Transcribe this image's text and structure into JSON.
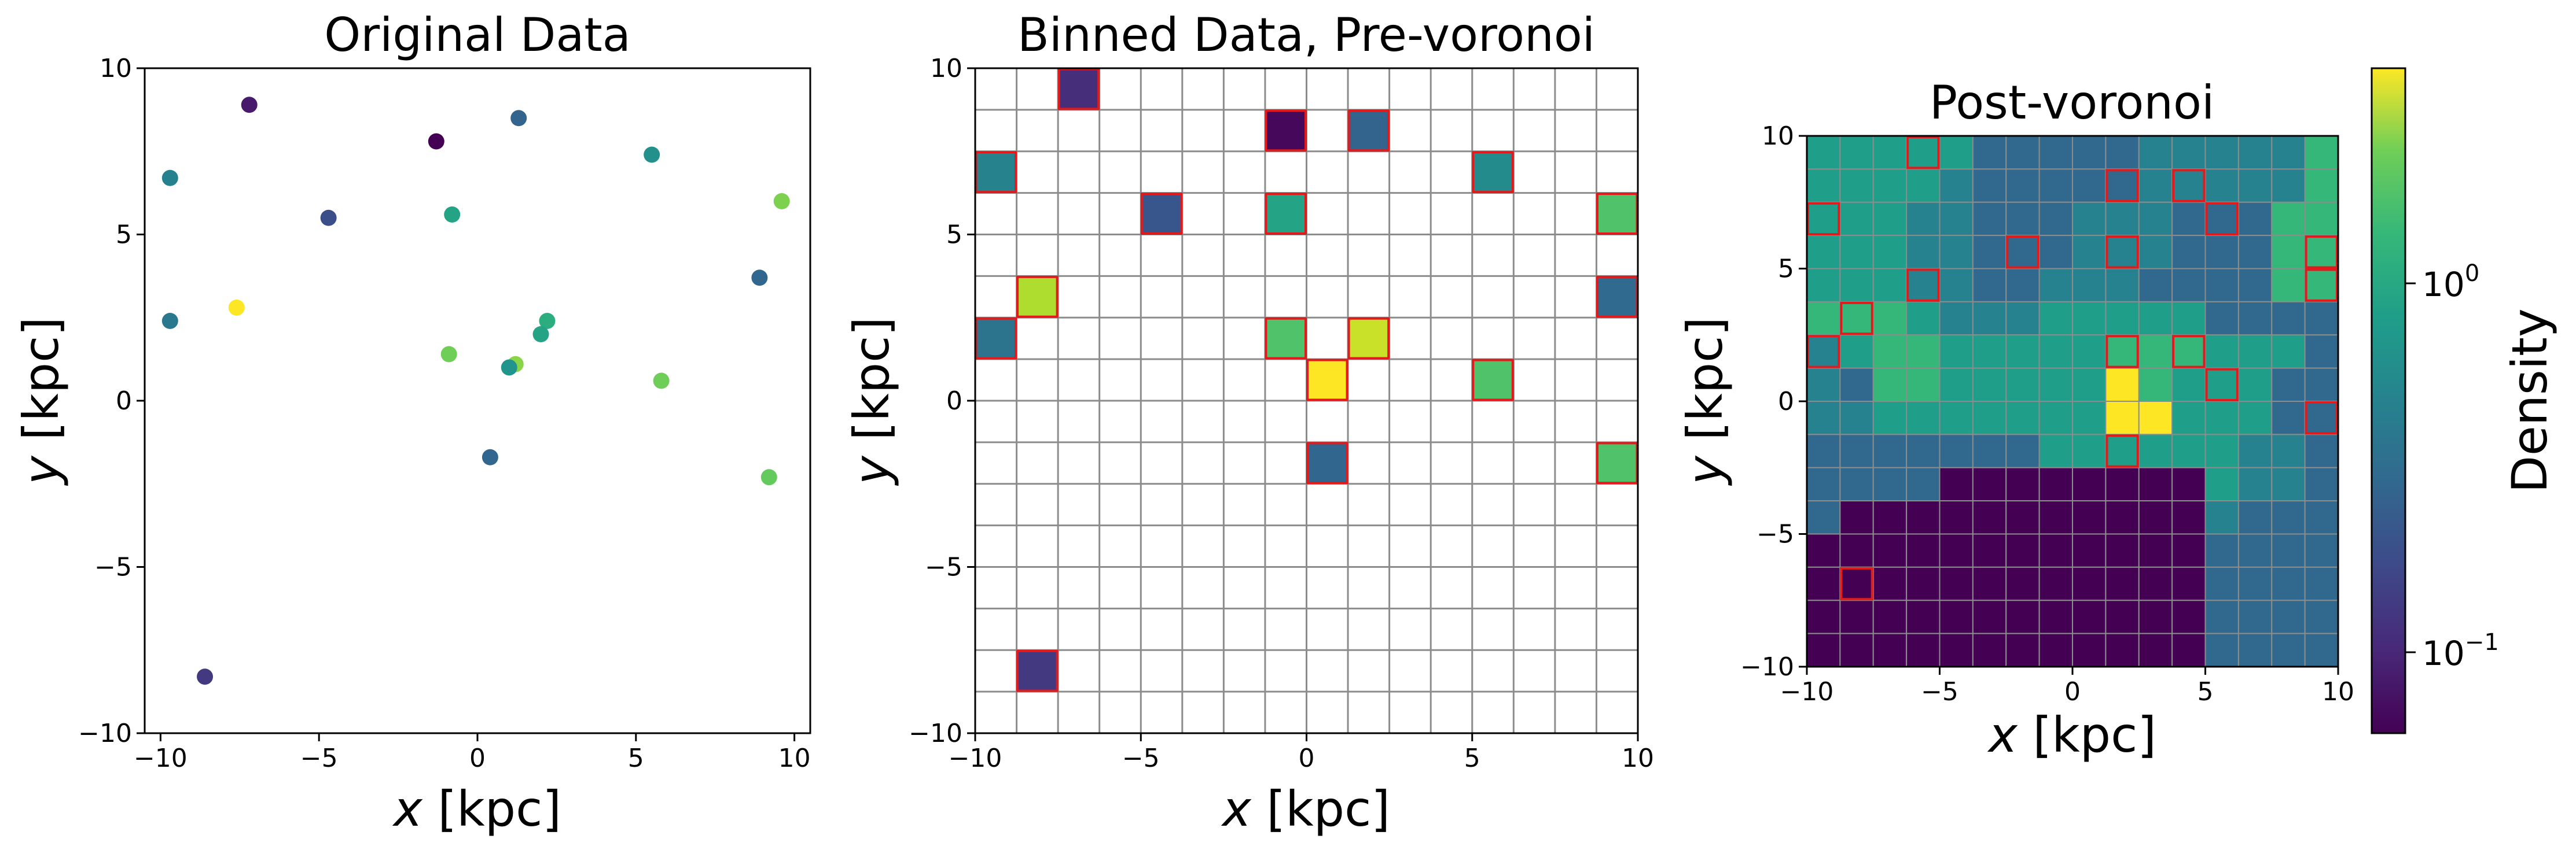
{
  "figure": {
    "panels": [
      {
        "title": "Original Data",
        "xlabel": "x [kpc]",
        "ylabel": "y [kpc]"
      },
      {
        "title": "Binned Data, Pre-voronoi",
        "xlabel": "x [kpc]",
        "ylabel": "y [kpc]"
      },
      {
        "title": "Post-voronoi",
        "xlabel": "x [kpc]",
        "ylabel": "y [kpc]"
      }
    ],
    "colorbar": {
      "label": "Density",
      "ticks": [
        "10^0",
        "10^-1"
      ],
      "scale": "log"
    },
    "colors": {
      "highlight": "#e31a1c",
      "grid": "#8c8c8c"
    }
  },
  "chart_data": [
    {
      "type": "scatter",
      "title": "Original Data",
      "xlabel": "x [kpc]",
      "ylabel": "y [kpc]",
      "xlim": [
        -10.5,
        10.5
      ],
      "ylim": [
        -10,
        10
      ],
      "xticks": [
        -10,
        -5,
        0,
        5,
        10
      ],
      "yticks": [
        -10,
        -5,
        0,
        5,
        10
      ],
      "points": [
        {
          "x": -7.2,
          "y": 8.9,
          "c": 0.07
        },
        {
          "x": -1.3,
          "y": 7.8,
          "c": 0.0
        },
        {
          "x": 1.3,
          "y": 8.5,
          "c": 0.32
        },
        {
          "x": 5.5,
          "y": 7.4,
          "c": 0.5
        },
        {
          "x": -9.7,
          "y": 6.7,
          "c": 0.44
        },
        {
          "x": -4.7,
          "y": 5.5,
          "c": 0.24
        },
        {
          "x": -0.8,
          "y": 5.6,
          "c": 0.58
        },
        {
          "x": 9.6,
          "y": 6.0,
          "c": 0.8
        },
        {
          "x": -9.7,
          "y": 2.4,
          "c": 0.4
        },
        {
          "x": -7.6,
          "y": 2.8,
          "c": 1.0
        },
        {
          "x": 8.9,
          "y": 3.7,
          "c": 0.33
        },
        {
          "x": 2.2,
          "y": 2.4,
          "c": 0.62
        },
        {
          "x": 2.0,
          "y": 2.0,
          "c": 0.58
        },
        {
          "x": -0.9,
          "y": 1.4,
          "c": 0.78
        },
        {
          "x": 1.2,
          "y": 1.1,
          "c": 0.82
        },
        {
          "x": 1.0,
          "y": 1.0,
          "c": 0.52
        },
        {
          "x": 5.8,
          "y": 0.6,
          "c": 0.78
        },
        {
          "x": 0.4,
          "y": -1.7,
          "c": 0.33
        },
        {
          "x": 9.2,
          "y": -2.3,
          "c": 0.76
        },
        {
          "x": -8.6,
          "y": -8.3,
          "c": 0.17
        }
      ]
    },
    {
      "type": "heatmap",
      "title": "Binned Data, Pre-voronoi",
      "xlabel": "x [kpc]",
      "ylabel": "y [kpc]",
      "xlim": [
        -10,
        10
      ],
      "ylim": [
        -10,
        10
      ],
      "grid": true,
      "cells": [
        {
          "x": -7.5,
          "y": 9.38,
          "c": 0.13
        },
        {
          "x": -1.25,
          "y": 8.13,
          "c": 0.02
        },
        {
          "x": 1.88,
          "y": 8.13,
          "c": 0.32
        },
        {
          "x": -9.38,
          "y": 6.88,
          "c": 0.45
        },
        {
          "x": 5.63,
          "y": 6.88,
          "c": 0.48
        },
        {
          "x": -4.38,
          "y": 5.63,
          "c": 0.27
        },
        {
          "x": -0.63,
          "y": 5.63,
          "c": 0.58
        },
        {
          "x": 9.38,
          "y": 5.63,
          "c": 0.72
        },
        {
          "x": -8.13,
          "y": 3.13,
          "c": 0.88
        },
        {
          "x": 9.38,
          "y": 3.13,
          "c": 0.34
        },
        {
          "x": -9.38,
          "y": 1.88,
          "c": 0.38
        },
        {
          "x": -0.63,
          "y": 1.88,
          "c": 0.72
        },
        {
          "x": 1.88,
          "y": 1.88,
          "c": 0.92
        },
        {
          "x": 0.63,
          "y": 0.63,
          "c": 1.0
        },
        {
          "x": 5.63,
          "y": 0.63,
          "c": 0.72
        },
        {
          "x": 0.63,
          "y": -1.88,
          "c": 0.33
        },
        {
          "x": 9.38,
          "y": -1.88,
          "c": 0.72
        },
        {
          "x": -8.13,
          "y": -8.13,
          "c": 0.17
        }
      ]
    },
    {
      "type": "heatmap",
      "title": "Post-voronoi",
      "xlabel": "x [kpc]",
      "ylabel": "y [kpc]",
      "xlim": [
        -10,
        10
      ],
      "ylim": [
        -10,
        10
      ],
      "grid": true,
      "colorscale": "viridis",
      "colorbar_label": "Density",
      "rows": [
        [
          5,
          5,
          5,
          5,
          5,
          3,
          3,
          3,
          3,
          3,
          4,
          4,
          4,
          4,
          4,
          6
        ],
        [
          5,
          5,
          5,
          5,
          4,
          3,
          3,
          3,
          3,
          3,
          4,
          4,
          4,
          4,
          4,
          6
        ],
        [
          5,
          5,
          5,
          4,
          4,
          3,
          3,
          3,
          4,
          4,
          4,
          3,
          3,
          3,
          6,
          6
        ],
        [
          5,
          5,
          5,
          4,
          4,
          3,
          3,
          3,
          4,
          4,
          4,
          3,
          3,
          3,
          6,
          6
        ],
        [
          5,
          5,
          5,
          4,
          4,
          3,
          3,
          4,
          4,
          4,
          3,
          3,
          3,
          3,
          6,
          6
        ],
        [
          6,
          6,
          6,
          5,
          4,
          4,
          4,
          5,
          5,
          5,
          5,
          5,
          3,
          3,
          3,
          3
        ],
        [
          4,
          5,
          6,
          6,
          5,
          5,
          5,
          5,
          5,
          6,
          6,
          6,
          5,
          5,
          5,
          3
        ],
        [
          4,
          3,
          6,
          6,
          5,
          5,
          5,
          5,
          5,
          9,
          6,
          5,
          5,
          5,
          3,
          3
        ],
        [
          4,
          4,
          5,
          5,
          5,
          5,
          5,
          5,
          5,
          9,
          9,
          5,
          5,
          5,
          3,
          3
        ],
        [
          3,
          3,
          3,
          3,
          3,
          3,
          3,
          5,
          5,
          5,
          5,
          5,
          5,
          4,
          4,
          3
        ],
        [
          3,
          3,
          3,
          3,
          0,
          0,
          0,
          0,
          0,
          0,
          0,
          0,
          5,
          4,
          4,
          3
        ],
        [
          3,
          0,
          0,
          0,
          0,
          0,
          0,
          0,
          0,
          0,
          0,
          0,
          4,
          3,
          3,
          3
        ],
        [
          0,
          0,
          0,
          0,
          0,
          0,
          0,
          0,
          0,
          0,
          0,
          0,
          3,
          3,
          3,
          3
        ],
        [
          0,
          0,
          0,
          0,
          0,
          0,
          0,
          0,
          0,
          0,
          0,
          0,
          3,
          3,
          3,
          3
        ],
        [
          0,
          0,
          0,
          0,
          0,
          0,
          0,
          0,
          0,
          0,
          0,
          0,
          3,
          3,
          3,
          3
        ],
        [
          0,
          0,
          0,
          0,
          0,
          0,
          0,
          0,
          0,
          0,
          0,
          0,
          3,
          3,
          3,
          3
        ]
      ],
      "highlighted": [
        [
          0,
          3
        ],
        [
          1,
          11
        ],
        [
          1,
          9
        ],
        [
          2,
          0
        ],
        [
          2,
          12
        ],
        [
          3,
          6
        ],
        [
          3,
          9
        ],
        [
          3,
          15
        ],
        [
          4,
          3
        ],
        [
          4,
          15
        ],
        [
          5,
          1
        ],
        [
          6,
          0
        ],
        [
          6,
          9
        ],
        [
          6,
          11
        ],
        [
          7,
          12
        ],
        [
          8,
          15
        ],
        [
          9,
          9
        ],
        [
          13,
          1
        ]
      ]
    }
  ]
}
